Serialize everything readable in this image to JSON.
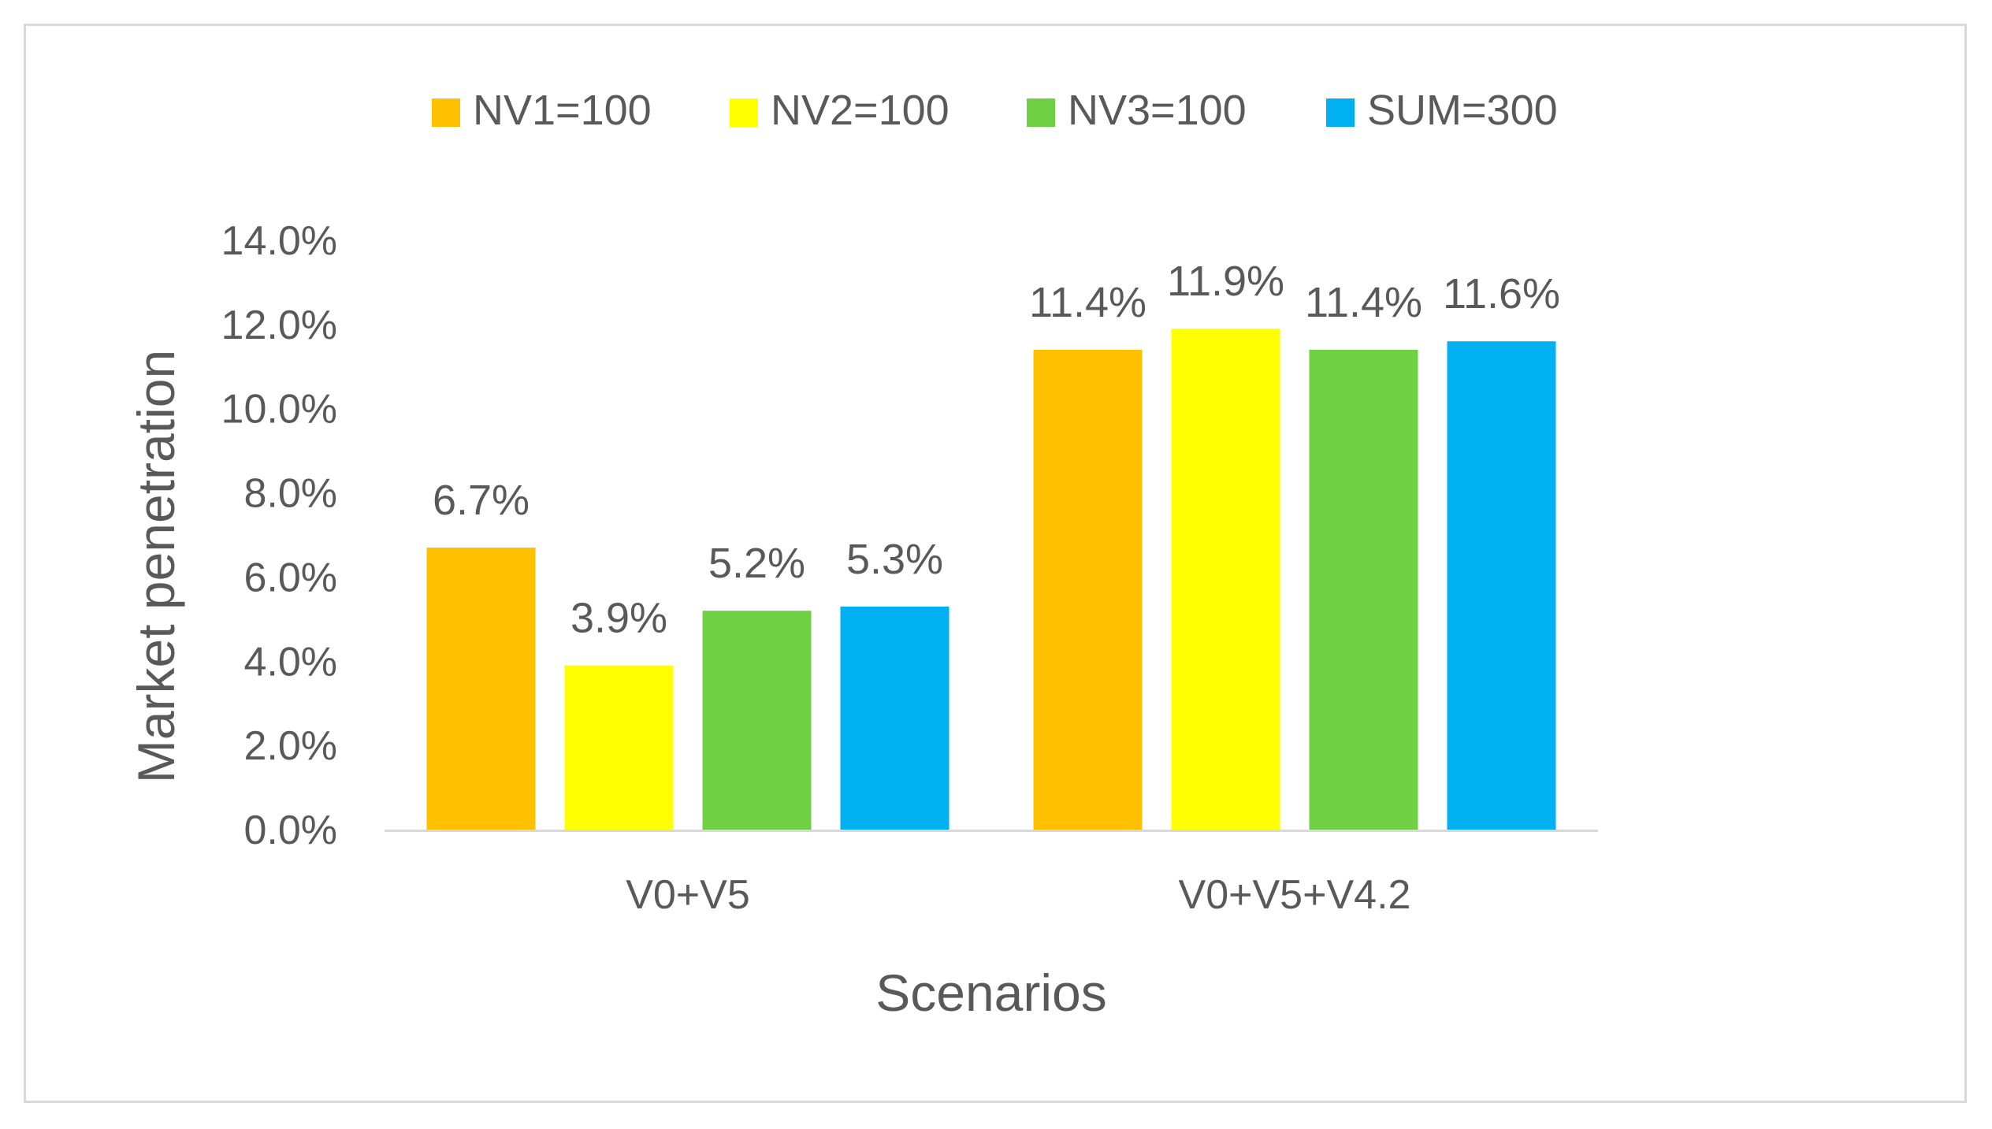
{
  "chart_data": {
    "type": "bar",
    "title": "",
    "xlabel": "Scenarios",
    "ylabel": "Market penetration",
    "categories": [
      "V0+V5",
      "V0+V5+V4.2"
    ],
    "series": [
      {
        "name": "NV1=100",
        "color": "#FFC000",
        "values": [
          6.7,
          11.4
        ],
        "labels": [
          "6.7%",
          "11.4%"
        ]
      },
      {
        "name": "NV2=100",
        "color": "#FFFF00",
        "values": [
          3.9,
          11.9
        ],
        "labels": [
          "3.9%",
          "11.9%"
        ]
      },
      {
        "name": "NV3=100",
        "color": "#70D044",
        "values": [
          5.2,
          11.4
        ],
        "labels": [
          "5.2%",
          "11.4%"
        ]
      },
      {
        "name": "SUM=300",
        "color": "#00B0F0",
        "values": [
          5.3,
          11.6
        ],
        "labels": [
          "5.3%",
          "11.6%"
        ]
      }
    ],
    "ylim": [
      0,
      14
    ],
    "yticks": [
      0,
      2,
      4,
      6,
      8,
      10,
      12,
      14
    ],
    "ytick_labels": [
      "0.0%",
      "2.0%",
      "4.0%",
      "6.0%",
      "8.0%",
      "10.0%",
      "12.0%",
      "14.0%"
    ],
    "grid": false,
    "legend_position": "top-center",
    "text_color": "#595959",
    "axis_color": "#d9d9d9"
  }
}
